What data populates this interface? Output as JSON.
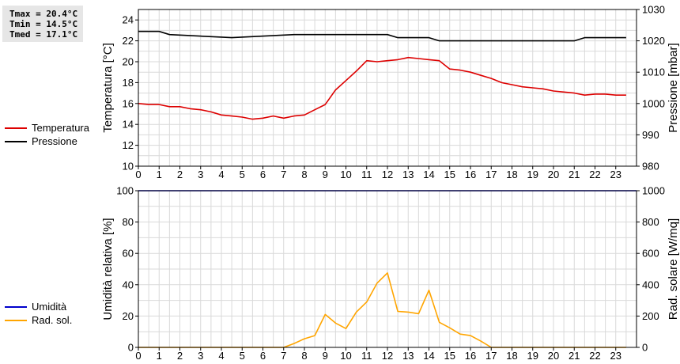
{
  "stats": {
    "tmax": "Tmax = 20.4°C",
    "tmin": "Tmin = 14.5°C",
    "tmed": "Tmed = 17.1°C"
  },
  "colors": {
    "temperature": "#dd0000",
    "pressure": "#000000",
    "humidity": "#0000cc",
    "solar": "#ffa500",
    "grid": "#d9d9d9"
  },
  "chart_data": [
    {
      "type": "line",
      "xlim": [
        0,
        24
      ],
      "xticks": [
        0,
        1,
        2,
        3,
        4,
        5,
        6,
        7,
        8,
        9,
        10,
        11,
        12,
        13,
        14,
        15,
        16,
        17,
        18,
        19,
        20,
        21,
        22,
        23
      ],
      "ylabel": "Temperatura [°C]",
      "ylim": [
        10,
        25
      ],
      "yticks": [
        10,
        12,
        14,
        16,
        18,
        20,
        22,
        24
      ],
      "y2label": "Pressione [mbar]",
      "y2lim": [
        980,
        1030
      ],
      "y2ticks": [
        980,
        990,
        1000,
        1010,
        1020,
        1030
      ],
      "grid": true,
      "legend": "left",
      "series": [
        {
          "name": "Temperatura",
          "axis": "left",
          "x": [
            0,
            0.5,
            1,
            1.5,
            2,
            2.5,
            3,
            3.5,
            4,
            4.5,
            5,
            5.5,
            6,
            6.5,
            7,
            7.5,
            8,
            8.5,
            9,
            9.5,
            10,
            10.5,
            11,
            11.5,
            12,
            12.5,
            13,
            13.5,
            14,
            14.5,
            15,
            15.5,
            16,
            16.5,
            17,
            17.5,
            18,
            18.5,
            19,
            19.5,
            20,
            20.5,
            21,
            21.5,
            22,
            22.5,
            23,
            23.5
          ],
          "values": [
            16.0,
            15.9,
            15.9,
            15.7,
            15.7,
            15.5,
            15.4,
            15.2,
            14.9,
            14.8,
            14.7,
            14.5,
            14.6,
            14.8,
            14.6,
            14.8,
            14.9,
            15.4,
            15.9,
            17.3,
            18.2,
            19.1,
            20.1,
            20.0,
            20.1,
            20.2,
            20.4,
            20.3,
            20.2,
            20.1,
            19.3,
            19.2,
            19.0,
            18.7,
            18.4,
            18.0,
            17.8,
            17.6,
            17.5,
            17.4,
            17.2,
            17.1,
            17.0,
            16.8,
            16.9,
            16.9,
            16.8,
            16.8
          ]
        },
        {
          "name": "Pressione",
          "axis": "right",
          "x": [
            0,
            1,
            1.5,
            4.5,
            7.5,
            12,
            12.5,
            14,
            14.5,
            21,
            21.5,
            23.5
          ],
          "values": [
            1023,
            1023,
            1022,
            1021,
            1022,
            1022,
            1021,
            1021,
            1020,
            1020,
            1021,
            1021
          ]
        }
      ]
    },
    {
      "type": "line",
      "xlim": [
        0,
        24
      ],
      "xticks": [
        0,
        1,
        2,
        3,
        4,
        5,
        6,
        7,
        8,
        9,
        10,
        11,
        12,
        13,
        14,
        15,
        16,
        17,
        18,
        19,
        20,
        21,
        22,
        23
      ],
      "ylabel": "Umidità relativa [%]",
      "ylim": [
        0,
        100
      ],
      "yticks": [
        0,
        20,
        40,
        60,
        80,
        100
      ],
      "y2label": "Rad. solare [W/mq]",
      "y2lim": [
        0,
        1000
      ],
      "y2ticks": [
        0,
        200,
        400,
        600,
        800,
        1000
      ],
      "grid": true,
      "legend": "left",
      "series": [
        {
          "name": "Umidità",
          "axis": "left",
          "x": [
            0,
            24
          ],
          "values": [
            100,
            100
          ]
        },
        {
          "name": "Rad. sol.",
          "axis": "right",
          "x": [
            0,
            7,
            7.5,
            8,
            8.5,
            9,
            9.5,
            10,
            10.5,
            11,
            11.5,
            12,
            12.5,
            13,
            13.5,
            14,
            14.5,
            15,
            15.5,
            16,
            16.5,
            17,
            23.5
          ],
          "values": [
            0,
            0,
            25,
            55,
            75,
            210,
            155,
            120,
            225,
            290,
            410,
            475,
            230,
            225,
            215,
            365,
            160,
            125,
            85,
            75,
            40,
            0,
            0
          ]
        }
      ]
    }
  ]
}
